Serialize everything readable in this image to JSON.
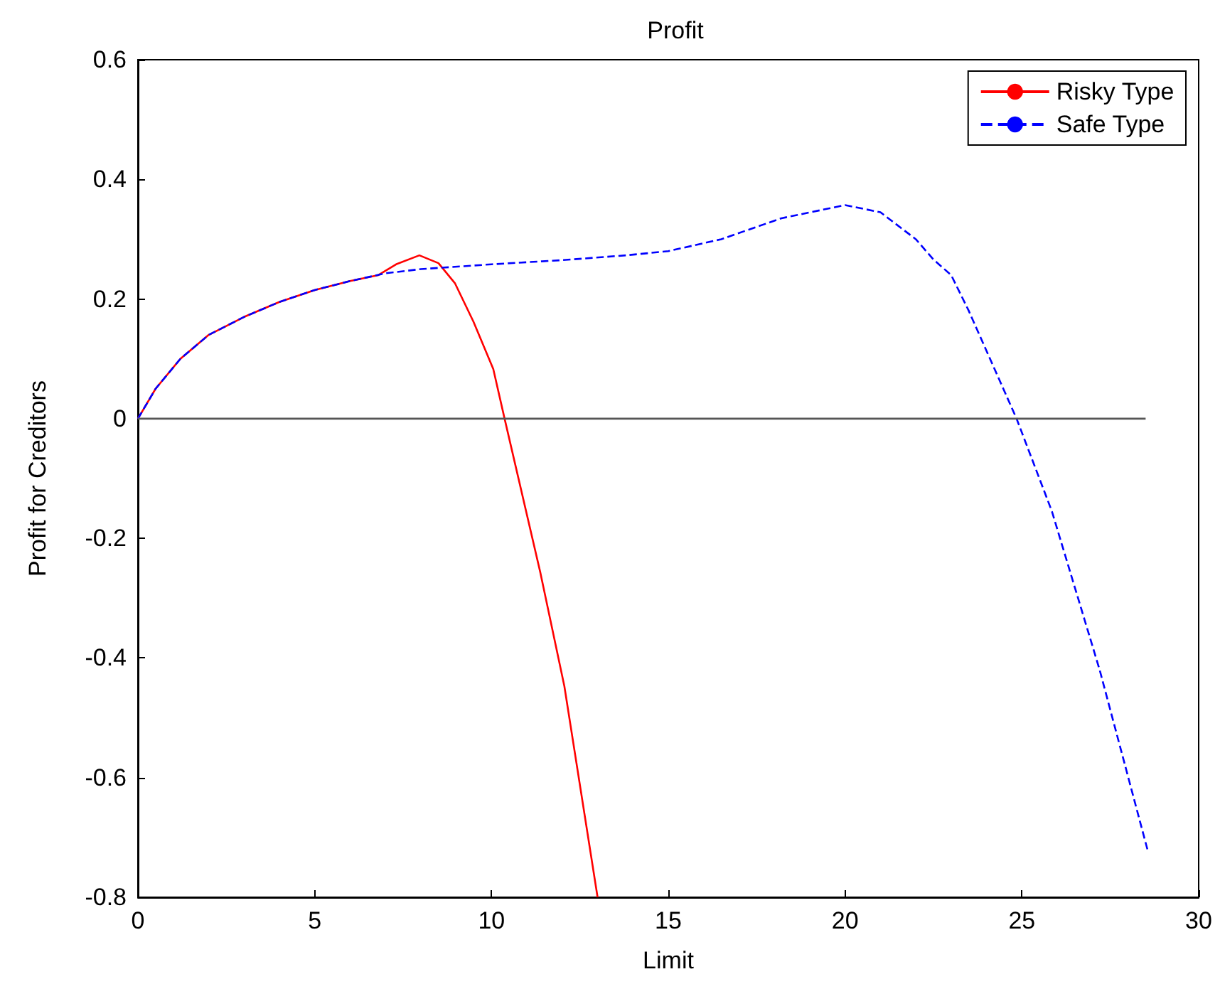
{
  "chart_data": {
    "type": "line",
    "title": "Profit",
    "xlabel": "Limit",
    "ylabel": "Profit for Creditors",
    "xlim": [
      0,
      30
    ],
    "xticks": [
      0,
      5,
      10,
      15,
      20,
      25,
      30
    ],
    "ylim": [
      -0.8,
      0.6
    ],
    "yticks": [
      -0.8,
      -0.6,
      -0.4,
      -0.2,
      0,
      0.2,
      0.4,
      0.6
    ],
    "grid": false,
    "legend": "top right",
    "marker": "none",
    "series": [
      {
        "name": "Risky Type",
        "color": "#ff0000",
        "line_style": "solid",
        "x": [
          0,
          0.5,
          1.2,
          2,
          3,
          4,
          5,
          6,
          6.8,
          7.3,
          7.96,
          8.5,
          8.97,
          9.49,
          10.05,
          10.37,
          11.38,
          12.06,
          13.0
        ],
        "values": [
          0,
          0.05,
          0.1,
          0.14,
          0.17,
          0.195,
          0.215,
          0.23,
          0.24,
          0.258,
          0.273,
          0.26,
          0.226,
          0.162,
          0.083,
          0,
          -0.257,
          -0.447,
          -0.8
        ]
      },
      {
        "name": "Safe Type",
        "color": "#0000ff",
        "line_style": "dashed",
        "x": [
          0,
          0.5,
          1.2,
          2,
          3,
          4,
          5,
          6,
          7,
          8,
          10,
          12,
          13.8,
          15,
          16.5,
          18.2,
          20,
          21,
          22,
          22.5,
          23,
          23.5,
          24.1,
          24.85,
          25.85,
          27.2,
          28.55
        ],
        "values": [
          0,
          0.05,
          0.1,
          0.14,
          0.17,
          0.195,
          0.215,
          0.23,
          0.243,
          0.25,
          0.258,
          0.265,
          0.273,
          0.28,
          0.3,
          0.335,
          0.357,
          0.345,
          0.3,
          0.266,
          0.24,
          0.18,
          0.1,
          0,
          -0.155,
          -0.42,
          -0.72
        ]
      },
      {
        "color": "#555555",
        "line_style": "solid",
        "x": [
          0,
          28.5
        ],
        "values": [
          0,
          0
        ]
      }
    ]
  }
}
